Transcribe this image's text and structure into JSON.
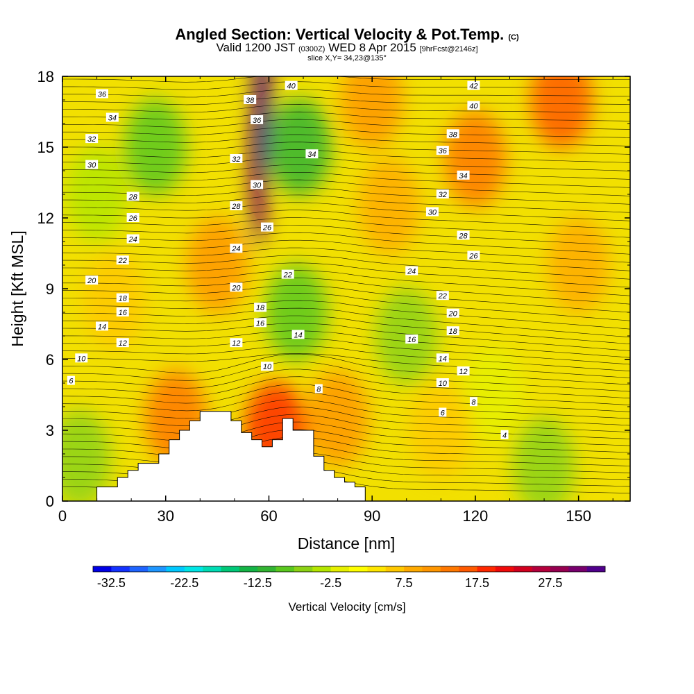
{
  "title": {
    "main": "Angled Section: Vertical Velocity & Pot.Temp.",
    "main_unit": "(C)",
    "line2_a": "Valid 1200 JST",
    "line2_b": "(0300Z)",
    "line2_c": "WED 8 Apr 2015",
    "line2_d": "[9hrFcst@2146z]",
    "line3": "slice X,Y= 34,23@135°"
  },
  "chart_data": {
    "type": "heatmap",
    "title": "Angled Section: Vertical Velocity & Pot.Temp. (C)",
    "xlabel": "Distance [nm]",
    "ylabel": "Height [Kft MSL]",
    "xlim": [
      0,
      165
    ],
    "ylim": [
      0,
      18
    ],
    "x_ticks": [
      "0",
      "30",
      "60",
      "90",
      "120",
      "150"
    ],
    "y_ticks": [
      "0",
      "3",
      "6",
      "9",
      "12",
      "15",
      "18"
    ],
    "colorbar": {
      "title": "Vertical Velocity [cm/s]",
      "tick_labels": [
        "-32.5",
        "-22.5",
        "-12.5",
        "-2.5",
        "7.5",
        "17.5",
        "27.5"
      ],
      "bins": [
        -35,
        -32.5,
        -30,
        -27.5,
        -25,
        -22.5,
        -20,
        -17.5,
        -15,
        -12.5,
        -10,
        -7.5,
        -5,
        -2.5,
        0,
        2.5,
        5,
        7.5,
        10,
        12.5,
        15,
        17.5,
        20,
        22.5,
        25,
        27.5,
        30,
        32.5
      ],
      "colors": [
        "#0000e6",
        "#1432ff",
        "#1e64ff",
        "#1e96ff",
        "#00c8ff",
        "#00e6e6",
        "#00dcb4",
        "#00c878",
        "#14b446",
        "#32b432",
        "#5ac81e",
        "#8cd214",
        "#b4e600",
        "#e6f000",
        "#ffff00",
        "#ffe600",
        "#ffc800",
        "#ffaa00",
        "#ff9600",
        "#ff7800",
        "#ff5a00",
        "#ff2800",
        "#f00a0a",
        "#d2001e",
        "#b4003c",
        "#960050",
        "#78006e",
        "#50008c"
      ]
    },
    "terrain": {
      "x": [
        0,
        10,
        10,
        16,
        16,
        19,
        19,
        22,
        22,
        25,
        25,
        28,
        28,
        31,
        31,
        34,
        34,
        37,
        37,
        40,
        40,
        43,
        43,
        46,
        46,
        49,
        49,
        52,
        52,
        55,
        55,
        58,
        58,
        61,
        61,
        64,
        64,
        67,
        67,
        73,
        73,
        76,
        76,
        79,
        79,
        82,
        82,
        85,
        85,
        88,
        88,
        91
      ],
      "height": [
        0,
        0,
        0.6,
        0.6,
        1.0,
        1.0,
        1.3,
        1.3,
        1.6,
        1.6,
        1.6,
        1.6,
        2.0,
        2.0,
        2.6,
        2.6,
        3.0,
        3.0,
        3.4,
        3.4,
        3.8,
        3.8,
        3.8,
        3.8,
        3.8,
        3.8,
        3.4,
        3.4,
        2.9,
        2.9,
        2.6,
        2.6,
        2.3,
        2.3,
        2.6,
        2.6,
        3.5,
        3.5,
        3.0,
        3.0,
        1.9,
        1.9,
        1.3,
        1.3,
        1.0,
        1.0,
        0.8,
        0.8,
        0.6,
        0.6,
        0,
        0
      ]
    },
    "velocity_features": [
      {
        "x": 57,
        "height": 14,
        "value": 30
      },
      {
        "x": 58,
        "height": 17,
        "value": 32.5
      },
      {
        "x": 45,
        "height": 10,
        "value": 10
      },
      {
        "x": 69,
        "height": 15,
        "value": -12.5
      },
      {
        "x": 68,
        "height": 8,
        "value": -10
      },
      {
        "x": 27,
        "height": 15,
        "value": -10
      },
      {
        "x": 10,
        "height": 13,
        "value": -5
      },
      {
        "x": 100,
        "height": 7,
        "value": -7.5
      },
      {
        "x": 125,
        "height": 4.5,
        "value": -2.5
      },
      {
        "x": 140,
        "height": 1.5,
        "value": -7.5
      },
      {
        "x": 5,
        "height": 1.8,
        "value": -7.5
      },
      {
        "x": 33,
        "height": 3.5,
        "value": 12.5
      },
      {
        "x": 62,
        "height": 3,
        "value": 17.5
      },
      {
        "x": 80,
        "height": 3.5,
        "value": 10
      },
      {
        "x": 95,
        "height": 12.5,
        "value": 7.5
      },
      {
        "x": 120,
        "height": 14.5,
        "value": 12.5
      },
      {
        "x": 145,
        "height": 17,
        "value": 15
      },
      {
        "x": 90,
        "height": 17,
        "value": 10
      },
      {
        "x": 15,
        "height": 8.5,
        "value": 5
      },
      {
        "x": 150,
        "height": 10,
        "value": 7.5
      },
      {
        "x": 110,
        "height": 3,
        "value": 5
      }
    ],
    "isentrope_labels": [
      {
        "text": "36",
        "x": 11.5,
        "height": 17.25
      },
      {
        "text": "34",
        "x": 14.5,
        "height": 16.25
      },
      {
        "text": "32",
        "x": 8.5,
        "height": 15.35
      },
      {
        "text": "30",
        "x": 8.5,
        "height": 14.25
      },
      {
        "text": "28",
        "x": 20.5,
        "height": 12.9
      },
      {
        "text": "26",
        "x": 20.5,
        "height": 12.0
      },
      {
        "text": "24",
        "x": 20.5,
        "height": 11.1
      },
      {
        "text": "22",
        "x": 17.5,
        "height": 10.2
      },
      {
        "text": "20",
        "x": 8.5,
        "height": 9.35
      },
      {
        "text": "18",
        "x": 17.5,
        "height": 8.6
      },
      {
        "text": "16",
        "x": 17.5,
        "height": 8.0
      },
      {
        "text": "14",
        "x": 11.5,
        "height": 7.4
      },
      {
        "text": "12",
        "x": 17.5,
        "height": 6.7
      },
      {
        "text": "10",
        "x": 5.5,
        "height": 6.05
      },
      {
        "text": "6",
        "x": 2.5,
        "height": 5.1
      },
      {
        "text": "40",
        "x": 66.5,
        "height": 17.6
      },
      {
        "text": "38",
        "x": 54.5,
        "height": 17.0
      },
      {
        "text": "36",
        "x": 56.5,
        "height": 16.15
      },
      {
        "text": "32",
        "x": 50.5,
        "height": 14.5
      },
      {
        "text": "34",
        "x": 72.5,
        "height": 14.7
      },
      {
        "text": "30",
        "x": 56.5,
        "height": 13.4
      },
      {
        "text": "28",
        "x": 50.5,
        "height": 12.5
      },
      {
        "text": "26",
        "x": 59.5,
        "height": 11.6
      },
      {
        "text": "24",
        "x": 50.5,
        "height": 10.7
      },
      {
        "text": "22",
        "x": 65.5,
        "height": 9.6
      },
      {
        "text": "20",
        "x": 50.5,
        "height": 9.05
      },
      {
        "text": "18",
        "x": 57.5,
        "height": 8.2
      },
      {
        "text": "16",
        "x": 57.5,
        "height": 7.55
      },
      {
        "text": "14",
        "x": 68.5,
        "height": 7.05
      },
      {
        "text": "12",
        "x": 50.5,
        "height": 6.7
      },
      {
        "text": "10",
        "x": 59.5,
        "height": 5.7
      },
      {
        "text": "8",
        "x": 74.5,
        "height": 4.75
      },
      {
        "text": "42",
        "x": 119.5,
        "height": 17.6
      },
      {
        "text": "40",
        "x": 119.5,
        "height": 16.75
      },
      {
        "text": "38",
        "x": 113.5,
        "height": 15.55
      },
      {
        "text": "36",
        "x": 110.5,
        "height": 14.85
      },
      {
        "text": "34",
        "x": 116.5,
        "height": 13.8
      },
      {
        "text": "32",
        "x": 110.5,
        "height": 13.0
      },
      {
        "text": "30",
        "x": 107.5,
        "height": 12.25
      },
      {
        "text": "28",
        "x": 116.5,
        "height": 11.25
      },
      {
        "text": "26",
        "x": 119.5,
        "height": 10.4
      },
      {
        "text": "24",
        "x": 101.5,
        "height": 9.75
      },
      {
        "text": "22",
        "x": 110.5,
        "height": 8.7
      },
      {
        "text": "20",
        "x": 113.5,
        "height": 7.95
      },
      {
        "text": "18",
        "x": 113.5,
        "height": 7.2
      },
      {
        "text": "16",
        "x": 101.5,
        "height": 6.85
      },
      {
        "text": "14",
        "x": 110.5,
        "height": 6.05
      },
      {
        "text": "12",
        "x": 116.5,
        "height": 5.5
      },
      {
        "text": "10",
        "x": 110.5,
        "height": 5.0
      },
      {
        "text": "8",
        "x": 119.5,
        "height": 4.2
      },
      {
        "text": "6",
        "x": 110.5,
        "height": 3.75
      },
      {
        "text": "4",
        "x": 128.5,
        "height": 2.8
      }
    ],
    "grid": false
  }
}
